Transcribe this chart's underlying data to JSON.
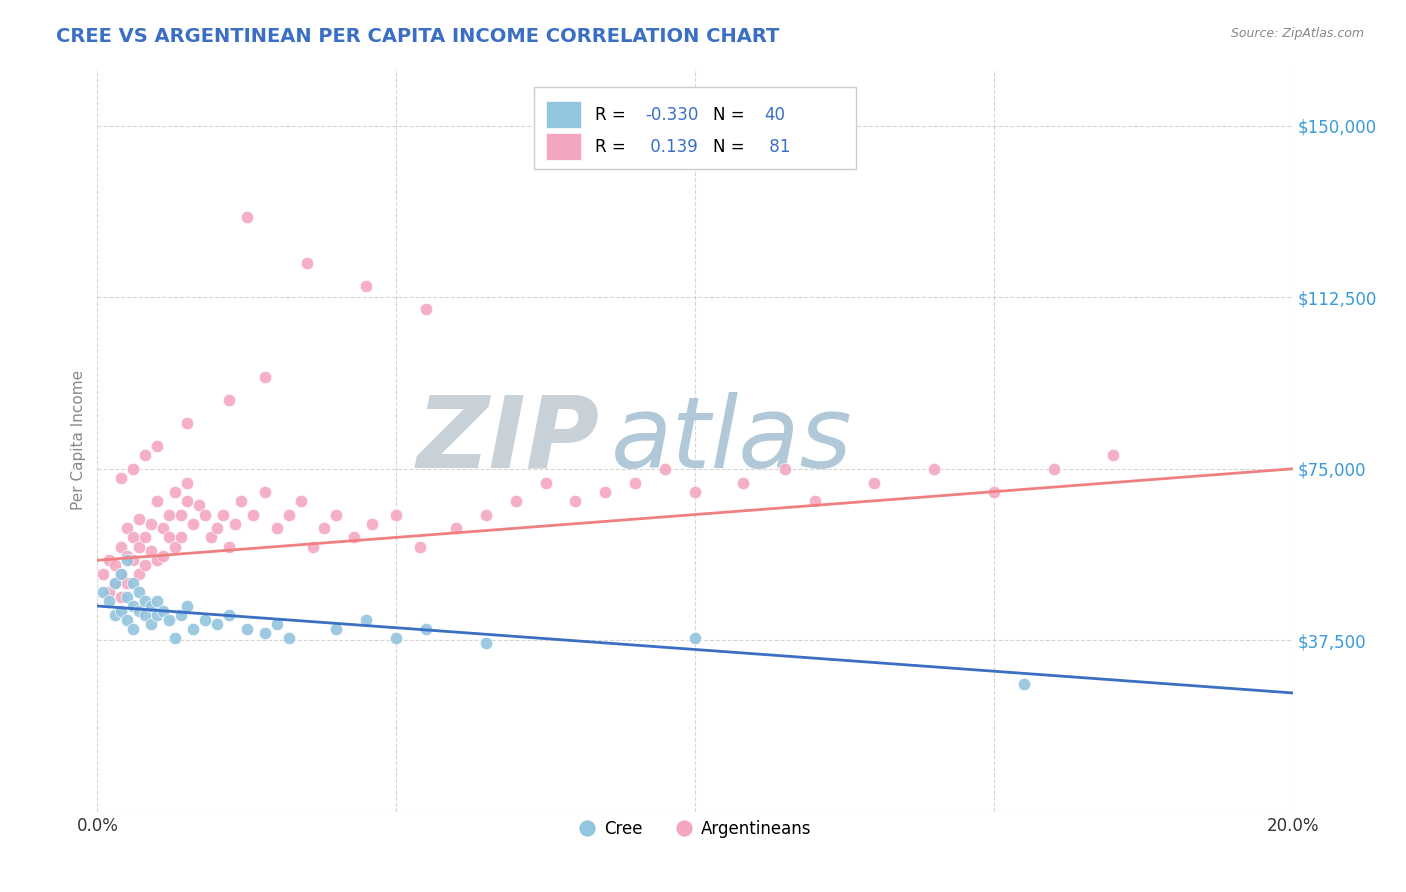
{
  "title": "CREE VS ARGENTINEAN PER CAPITA INCOME CORRELATION CHART",
  "source_text": "Source: ZipAtlas.com",
  "ylabel": "Per Capita Income",
  "xlim": [
    0.0,
    0.2
  ],
  "ylim": [
    0,
    162500
  ],
  "yticks": [
    0,
    37500,
    75000,
    112500,
    150000
  ],
  "ytick_labels": [
    "",
    "$37,500",
    "$75,000",
    "$112,500",
    "$150,000"
  ],
  "xticks": [
    0.0,
    0.05,
    0.1,
    0.15,
    0.2
  ],
  "xtick_labels": [
    "0.0%",
    "",
    "",
    "",
    "20.0%"
  ],
  "cree_R": -0.33,
  "cree_N": 40,
  "arg_R": 0.139,
  "arg_N": 81,
  "cree_color": "#92c5de",
  "arg_color": "#f4a6c0",
  "cree_line_color": "#3a6fc4",
  "arg_line_color": "#f08080",
  "title_color": "#3a6fc4",
  "axis_label_color": "#888888",
  "tick_color_y": "#3a9ad9",
  "watermark_zip_color": "#c8d8e8",
  "watermark_atlas_color": "#b8ccd8",
  "background_color": "#ffffff",
  "legend_R_color": "#3a6fc4",
  "legend_N_color": "#3a6fc4",
  "cree_line_y0": 45000,
  "cree_line_y1": 26000,
  "arg_line_y0": 55000,
  "arg_line_y1": 75000,
  "cree_scatter_x": [
    0.001,
    0.002,
    0.003,
    0.003,
    0.004,
    0.004,
    0.005,
    0.005,
    0.005,
    0.006,
    0.006,
    0.006,
    0.007,
    0.007,
    0.008,
    0.008,
    0.009,
    0.009,
    0.01,
    0.01,
    0.011,
    0.012,
    0.013,
    0.014,
    0.015,
    0.016,
    0.018,
    0.02,
    0.022,
    0.025,
    0.028,
    0.03,
    0.032,
    0.04,
    0.045,
    0.05,
    0.055,
    0.065,
    0.1,
    0.155
  ],
  "cree_scatter_y": [
    48000,
    46000,
    50000,
    43000,
    52000,
    44000,
    47000,
    42000,
    55000,
    45000,
    50000,
    40000,
    44000,
    48000,
    43000,
    46000,
    45000,
    41000,
    46000,
    43000,
    44000,
    42000,
    38000,
    43000,
    45000,
    40000,
    42000,
    41000,
    43000,
    40000,
    39000,
    41000,
    38000,
    40000,
    42000,
    38000,
    40000,
    37000,
    38000,
    28000
  ],
  "arg_scatter_x": [
    0.001,
    0.002,
    0.002,
    0.003,
    0.003,
    0.004,
    0.004,
    0.004,
    0.005,
    0.005,
    0.005,
    0.006,
    0.006,
    0.007,
    0.007,
    0.007,
    0.008,
    0.008,
    0.009,
    0.009,
    0.01,
    0.01,
    0.011,
    0.011,
    0.012,
    0.012,
    0.013,
    0.013,
    0.014,
    0.014,
    0.015,
    0.015,
    0.016,
    0.017,
    0.018,
    0.019,
    0.02,
    0.021,
    0.022,
    0.023,
    0.024,
    0.026,
    0.028,
    0.03,
    0.032,
    0.034,
    0.036,
    0.038,
    0.04,
    0.043,
    0.046,
    0.05,
    0.054,
    0.06,
    0.065,
    0.07,
    0.075,
    0.08,
    0.085,
    0.09,
    0.095,
    0.1,
    0.108,
    0.115,
    0.12,
    0.13,
    0.14,
    0.15,
    0.16,
    0.17,
    0.025,
    0.035,
    0.045,
    0.055,
    0.028,
    0.022,
    0.015,
    0.01,
    0.008,
    0.006,
    0.004
  ],
  "arg_scatter_y": [
    52000,
    55000,
    48000,
    54000,
    50000,
    58000,
    52000,
    47000,
    56000,
    50000,
    62000,
    55000,
    60000,
    52000,
    58000,
    64000,
    54000,
    60000,
    57000,
    63000,
    55000,
    68000,
    56000,
    62000,
    60000,
    65000,
    58000,
    70000,
    60000,
    65000,
    68000,
    72000,
    63000,
    67000,
    65000,
    60000,
    62000,
    65000,
    58000,
    63000,
    68000,
    65000,
    70000,
    62000,
    65000,
    68000,
    58000,
    62000,
    65000,
    60000,
    63000,
    65000,
    58000,
    62000,
    65000,
    68000,
    72000,
    68000,
    70000,
    72000,
    75000,
    70000,
    72000,
    75000,
    68000,
    72000,
    75000,
    70000,
    75000,
    78000,
    130000,
    120000,
    115000,
    110000,
    95000,
    90000,
    85000,
    80000,
    78000,
    75000,
    73000
  ]
}
